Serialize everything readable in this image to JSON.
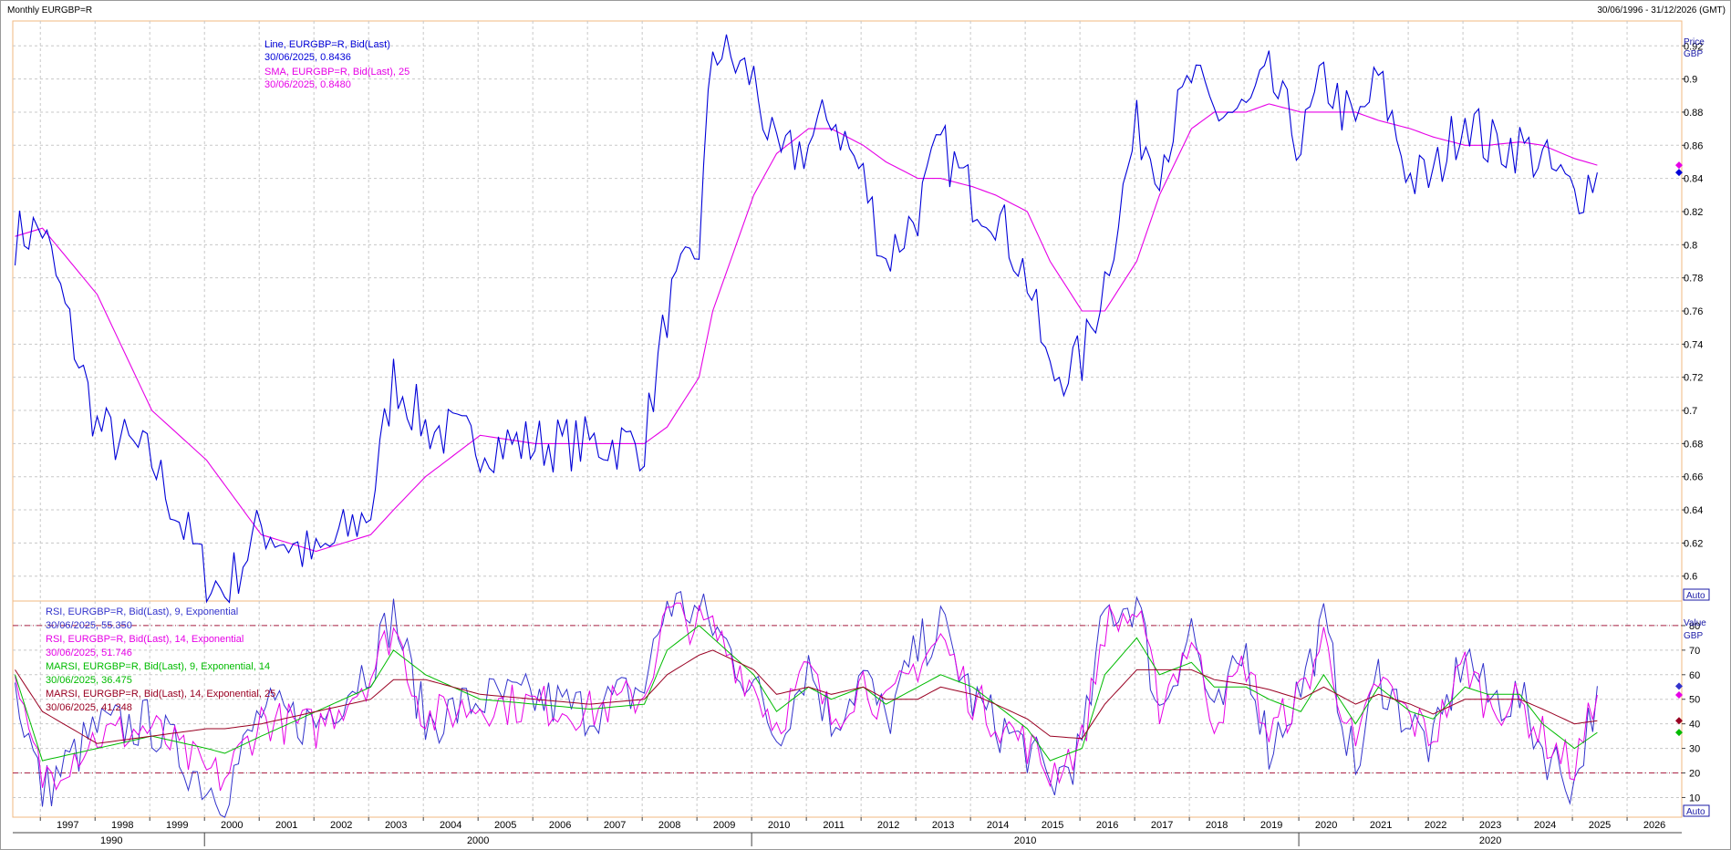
{
  "window": {
    "title": "Monthly EURGBP=R",
    "date_range": "30/06/1996 - 31/12/2026 (GMT)"
  },
  "price_pane": {
    "axis_title_1": "Price",
    "axis_title_2": "GBP",
    "auto_button": "Auto",
    "ticks": [
      "0.6",
      "0.62",
      "0.64",
      "0.66",
      "0.68",
      "0.7",
      "0.72",
      "0.74",
      "0.76",
      "0.78",
      "0.8",
      "0.82",
      "0.84",
      "0.86",
      "0.88",
      "0.9",
      "0.92"
    ],
    "legend": [
      {
        "label": "Line, EURGBP=R, Bid(Last)",
        "value": "30/06/2025, 0.8436",
        "color": "#0000d8"
      },
      {
        "label": "SMA, EURGBP=R, Bid(Last),  25",
        "value": "30/06/2025, 0.8480",
        "color": "#e600e6"
      }
    ]
  },
  "indicator_pane": {
    "axis_title_1": "Value",
    "axis_title_2": "GBP",
    "auto_button": "Auto",
    "ticks": [
      "10",
      "20",
      "30",
      "40",
      "50",
      "60",
      "70",
      "80"
    ],
    "legend": [
      {
        "label": "RSI, EURGBP=R, Bid(Last),  9, Exponential",
        "value": "30/06/2025, 55.350",
        "color": "#3333cc"
      },
      {
        "label": "RSI, EURGBP=R, Bid(Last),  14, Exponential",
        "value": "30/06/2025, 51.746",
        "color": "#e600e6"
      },
      {
        "label": "MARSI, EURGBP=R, Bid(Last),  9, Exponential, 14",
        "value": "30/06/2025, 36.475",
        "color": "#00bb00"
      },
      {
        "label": "MARSI, EURGBP=R, Bid(Last),  14, Exponential, 25",
        "value": "30/06/2025, 41.248",
        "color": "#990022"
      }
    ],
    "reference_lines": [
      20,
      80
    ]
  },
  "x_axis": {
    "year_labels": [
      "1997",
      "1998",
      "1999",
      "2000",
      "2001",
      "2002",
      "2003",
      "2004",
      "2005",
      "2006",
      "2007",
      "2008",
      "2009",
      "2010",
      "2011",
      "2012",
      "2013",
      "2014",
      "2015",
      "2016",
      "2017",
      "2018",
      "2019",
      "2020",
      "2021",
      "2022",
      "2023",
      "2024",
      "2025",
      "2026"
    ],
    "decade_labels": [
      "1990",
      "2000",
      "2010",
      "2020"
    ]
  },
  "colors": {
    "price": "#0000d8",
    "sma": "#e600e6",
    "rsi9": "#3333cc",
    "rsi14": "#e600e6",
    "marsi9": "#00bb00",
    "marsi14": "#990022",
    "frame": "#f2b880",
    "grid": "#c8c8c8"
  },
  "chart_data": [
    {
      "type": "line",
      "title": "Monthly EURGBP=R",
      "y_unit": "GBP",
      "ylim": [
        0.585,
        0.935
      ],
      "xlim": [
        "1996-06-30",
        "2026-12-31"
      ],
      "grid": true,
      "legend_position": "top-left",
      "x_anchors": [
        "1996-07",
        "1997-01",
        "1998-01",
        "1999-01",
        "2000-01",
        "2000-05",
        "2001-01",
        "2002-01",
        "2003-01",
        "2003-06",
        "2004-01",
        "2005-01",
        "2006-01",
        "2007-01",
        "2008-01",
        "2008-06",
        "2009-01",
        "2009-04",
        "2010-01",
        "2010-06",
        "2011-01",
        "2011-06",
        "2012-01",
        "2012-06",
        "2013-01",
        "2013-06",
        "2014-01",
        "2014-06",
        "2015-01",
        "2015-06",
        "2016-01",
        "2016-06",
        "2017-01",
        "2017-06",
        "2018-01",
        "2018-06",
        "2019-01",
        "2019-06",
        "2020-01",
        "2020-06",
        "2021-01",
        "2021-06",
        "2022-01",
        "2022-06",
        "2023-01",
        "2023-06",
        "2024-01",
        "2024-06",
        "2025-01",
        "2025-06"
      ],
      "series": [
        {
          "name": "Line, EURGBP=R, Bid(Last)",
          "values": [
            0.805,
            0.81,
            0.69,
            0.67,
            0.6,
            0.59,
            0.63,
            0.61,
            0.64,
            0.72,
            0.69,
            0.68,
            0.68,
            0.68,
            0.68,
            0.76,
            0.8,
            0.92,
            0.9,
            0.85,
            0.86,
            0.88,
            0.84,
            0.79,
            0.82,
            0.86,
            0.83,
            0.82,
            0.78,
            0.72,
            0.73,
            0.78,
            0.87,
            0.85,
            0.9,
            0.88,
            0.88,
            0.9,
            0.86,
            0.9,
            0.87,
            0.9,
            0.84,
            0.84,
            0.88,
            0.86,
            0.86,
            0.85,
            0.83,
            0.8436
          ]
        },
        {
          "name": "SMA, EURGBP=R, Bid(Last),  25",
          "values": [
            0.805,
            0.81,
            0.77,
            0.7,
            0.67,
            0.655,
            0.625,
            0.615,
            0.625,
            0.64,
            0.66,
            0.685,
            0.68,
            0.68,
            0.68,
            0.69,
            0.72,
            0.76,
            0.83,
            0.855,
            0.87,
            0.87,
            0.86,
            0.85,
            0.84,
            0.84,
            0.835,
            0.83,
            0.82,
            0.79,
            0.76,
            0.76,
            0.79,
            0.83,
            0.87,
            0.88,
            0.88,
            0.885,
            0.88,
            0.88,
            0.88,
            0.875,
            0.87,
            0.865,
            0.86,
            0.86,
            0.862,
            0.86,
            0.852,
            0.848
          ]
        }
      ]
    },
    {
      "type": "line",
      "y_unit": "GBP",
      "ylim": [
        2,
        90
      ],
      "xlim": [
        "1996-06-30",
        "2026-12-31"
      ],
      "grid": true,
      "legend_position": "top-left",
      "x_anchors": [
        "1996-07",
        "1997-01",
        "1998-01",
        "1999-01",
        "2000-01",
        "2000-05",
        "2001-01",
        "2002-01",
        "2003-01",
        "2003-06",
        "2004-01",
        "2005-01",
        "2006-01",
        "2007-01",
        "2008-01",
        "2008-06",
        "2009-01",
        "2009-04",
        "2010-01",
        "2010-06",
        "2011-01",
        "2011-06",
        "2012-01",
        "2012-06",
        "2013-01",
        "2013-06",
        "2014-01",
        "2014-06",
        "2015-01",
        "2015-06",
        "2016-01",
        "2016-06",
        "2017-01",
        "2017-06",
        "2018-01",
        "2018-06",
        "2019-01",
        "2019-06",
        "2020-01",
        "2020-06",
        "2021-01",
        "2021-06",
        "2022-01",
        "2022-06",
        "2023-01",
        "2023-06",
        "2024-01",
        "2024-06",
        "2025-01",
        "2025-06"
      ],
      "series": [
        {
          "name": "RSI, EURGBP=R, Bid(Last),  9, Exponential",
          "values": [
            55,
            12,
            38,
            40,
            15,
            12,
            45,
            40,
            65,
            85,
            40,
            50,
            50,
            45,
            55,
            90,
            85,
            80,
            55,
            35,
            65,
            40,
            60,
            40,
            70,
            80,
            50,
            40,
            30,
            15,
            30,
            85,
            90,
            45,
            80,
            40,
            70,
            30,
            55,
            80,
            20,
            60,
            40,
            30,
            70,
            50,
            50,
            30,
            15,
            55.35
          ]
        },
        {
          "name": "RSI, EURGBP=R, Bid(Last),  14, Exponential",
          "values": [
            52,
            18,
            35,
            38,
            20,
            18,
            42,
            38,
            60,
            80,
            42,
            48,
            48,
            45,
            52,
            85,
            80,
            78,
            55,
            40,
            62,
            42,
            58,
            45,
            65,
            75,
            50,
            42,
            32,
            20,
            32,
            80,
            85,
            48,
            75,
            42,
            65,
            35,
            52,
            75,
            28,
            58,
            42,
            35,
            65,
            48,
            48,
            35,
            22,
            51.746
          ]
        },
        {
          "name": "MARSI, EURGBP=R, Bid(Last),  9, Exponential, 14",
          "values": [
            60,
            25,
            30,
            35,
            30,
            28,
            35,
            45,
            55,
            70,
            60,
            50,
            48,
            46,
            48,
            70,
            80,
            75,
            60,
            45,
            55,
            50,
            55,
            48,
            55,
            60,
            55,
            48,
            38,
            25,
            30,
            60,
            75,
            60,
            65,
            55,
            55,
            50,
            45,
            60,
            40,
            55,
            45,
            42,
            55,
            52,
            52,
            40,
            30,
            36.475
          ]
        },
        {
          "name": "MARSI, EURGBP=R, Bid(Last),  14, Exponential, 25",
          "values": [
            62,
            45,
            32,
            35,
            38,
            38,
            40,
            45,
            50,
            58,
            58,
            52,
            50,
            48,
            50,
            60,
            68,
            70,
            62,
            52,
            55,
            52,
            55,
            50,
            50,
            55,
            52,
            48,
            42,
            35,
            34,
            48,
            62,
            62,
            62,
            58,
            56,
            54,
            50,
            55,
            48,
            52,
            48,
            44,
            50,
            50,
            50,
            46,
            40,
            41.248
          ]
        }
      ],
      "reference_lines": [
        20,
        80
      ]
    }
  ]
}
